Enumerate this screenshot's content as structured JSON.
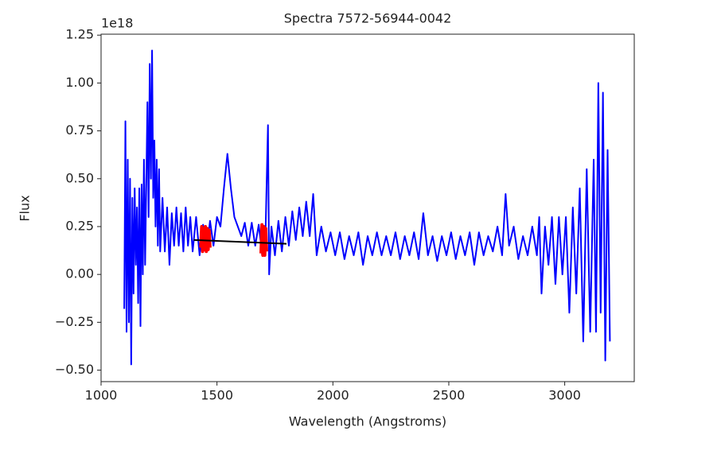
{
  "chart_data": {
    "type": "line",
    "title": "Spectra 7572-56944-0042",
    "x_label": "Wavelength (Angstroms)",
    "y_label": "Flux",
    "y_offset_label": "1e18",
    "xlim": [
      1000,
      3300
    ],
    "ylim": [
      -0.56,
      1.255
    ],
    "xticks": [
      1000,
      1500,
      2000,
      2500,
      3000
    ],
    "yticks": [
      {
        "value": -0.5,
        "label": "−0.50"
      },
      {
        "value": -0.25,
        "label": "−0.25"
      },
      {
        "value": 0,
        "label": "0.00"
      },
      0.25,
      {
        "value": 0.5,
        "label": "0.50"
      },
      0.75,
      {
        "value": 1,
        "label": "1.00"
      },
      1.25
    ],
    "grid": false,
    "series": [
      {
        "color": "#0000ff",
        "x": [
          1100,
          1105,
          1110,
          1115,
          1120,
          1125,
          1130,
          1135,
          1140,
          1145,
          1150,
          1155,
          1160,
          1165,
          1170,
          1175,
          1180,
          1185,
          1190,
          1200,
          1205,
          1210,
          1215,
          1220,
          1225,
          1230,
          1235,
          1240,
          1245,
          1250,
          1255,
          1265,
          1275,
          1285,
          1295,
          1305,
          1315,
          1325,
          1335,
          1345,
          1355,
          1365,
          1375,
          1385,
          1395,
          1410,
          1425,
          1440,
          1455,
          1470,
          1485,
          1500,
          1515,
          1530,
          1545,
          1560,
          1575,
          1590,
          1605,
          1620,
          1635,
          1650,
          1665,
          1680,
          1695,
          1710,
          1720,
          1725,
          1735,
          1750,
          1765,
          1780,
          1795,
          1810,
          1825,
          1840,
          1855,
          1870,
          1885,
          1900,
          1915,
          1930,
          1950,
          1970,
          1990,
          2010,
          2030,
          2050,
          2070,
          2090,
          2110,
          2130,
          2150,
          2170,
          2190,
          2210,
          2230,
          2250,
          2270,
          2290,
          2310,
          2330,
          2350,
          2370,
          2390,
          2410,
          2430,
          2450,
          2470,
          2490,
          2510,
          2530,
          2550,
          2570,
          2590,
          2610,
          2630,
          2650,
          2670,
          2690,
          2710,
          2730,
          2745,
          2760,
          2780,
          2800,
          2820,
          2840,
          2860,
          2880,
          2890,
          2900,
          2915,
          2930,
          2945,
          2960,
          2975,
          2990,
          3005,
          3020,
          3035,
          3050,
          3065,
          3080,
          3095,
          3110,
          3125,
          3135,
          3145,
          3155,
          3165,
          3175,
          3185,
          3195
        ],
        "values": [
          -0.18,
          0.8,
          -0.3,
          0.6,
          -0.25,
          0.5,
          -0.47,
          0.4,
          -0.1,
          0.45,
          0.05,
          0.35,
          -0.15,
          0.45,
          -0.27,
          0.47,
          0.0,
          0.6,
          0.05,
          0.9,
          0.3,
          1.1,
          0.5,
          1.17,
          0.4,
          0.7,
          0.25,
          0.6,
          0.15,
          0.55,
          0.12,
          0.4,
          0.12,
          0.35,
          0.05,
          0.32,
          0.15,
          0.35,
          0.15,
          0.32,
          0.12,
          0.35,
          0.15,
          0.3,
          0.12,
          0.3,
          0.1,
          0.26,
          0.12,
          0.28,
          0.15,
          0.3,
          0.25,
          0.45,
          0.63,
          0.45,
          0.3,
          0.25,
          0.2,
          0.27,
          0.15,
          0.27,
          0.15,
          0.26,
          0.1,
          0.25,
          0.78,
          0.0,
          0.25,
          0.1,
          0.28,
          0.12,
          0.3,
          0.15,
          0.33,
          0.18,
          0.35,
          0.2,
          0.38,
          0.2,
          0.42,
          0.1,
          0.25,
          0.12,
          0.22,
          0.1,
          0.22,
          0.08,
          0.2,
          0.1,
          0.22,
          0.05,
          0.2,
          0.1,
          0.22,
          0.1,
          0.2,
          0.1,
          0.22,
          0.08,
          0.2,
          0.1,
          0.22,
          0.08,
          0.32,
          0.1,
          0.2,
          0.07,
          0.2,
          0.1,
          0.22,
          0.08,
          0.2,
          0.1,
          0.22,
          0.05,
          0.22,
          0.1,
          0.2,
          0.12,
          0.25,
          0.1,
          0.42,
          0.15,
          0.25,
          0.08,
          0.2,
          0.1,
          0.25,
          0.1,
          0.3,
          -0.1,
          0.25,
          0.05,
          0.3,
          -0.05,
          0.3,
          0.0,
          0.3,
          -0.2,
          0.35,
          -0.1,
          0.45,
          -0.35,
          0.55,
          -0.3,
          0.6,
          -0.3,
          1.0,
          -0.2,
          0.95,
          -0.45,
          0.65,
          -0.35
        ]
      },
      {
        "color": "#ff0000",
        "x": [
          1430,
          1434,
          1438,
          1442,
          1446,
          1450,
          1454,
          1458,
          1462,
          1466,
          1470
        ],
        "values": [
          0.14,
          0.25,
          0.12,
          0.24,
          0.13,
          0.25,
          0.12,
          0.24,
          0.13,
          0.23,
          0.14
        ]
      },
      {
        "color": "#ff0000",
        "x": [
          1690,
          1694,
          1698,
          1702,
          1706,
          1710,
          1714
        ],
        "values": [
          0.11,
          0.26,
          0.1,
          0.25,
          0.1,
          0.24,
          0.12
        ]
      },
      {
        "color": "#000000",
        "x": [
          1400,
          1800
        ],
        "values": [
          0.18,
          0.16
        ]
      }
    ]
  }
}
